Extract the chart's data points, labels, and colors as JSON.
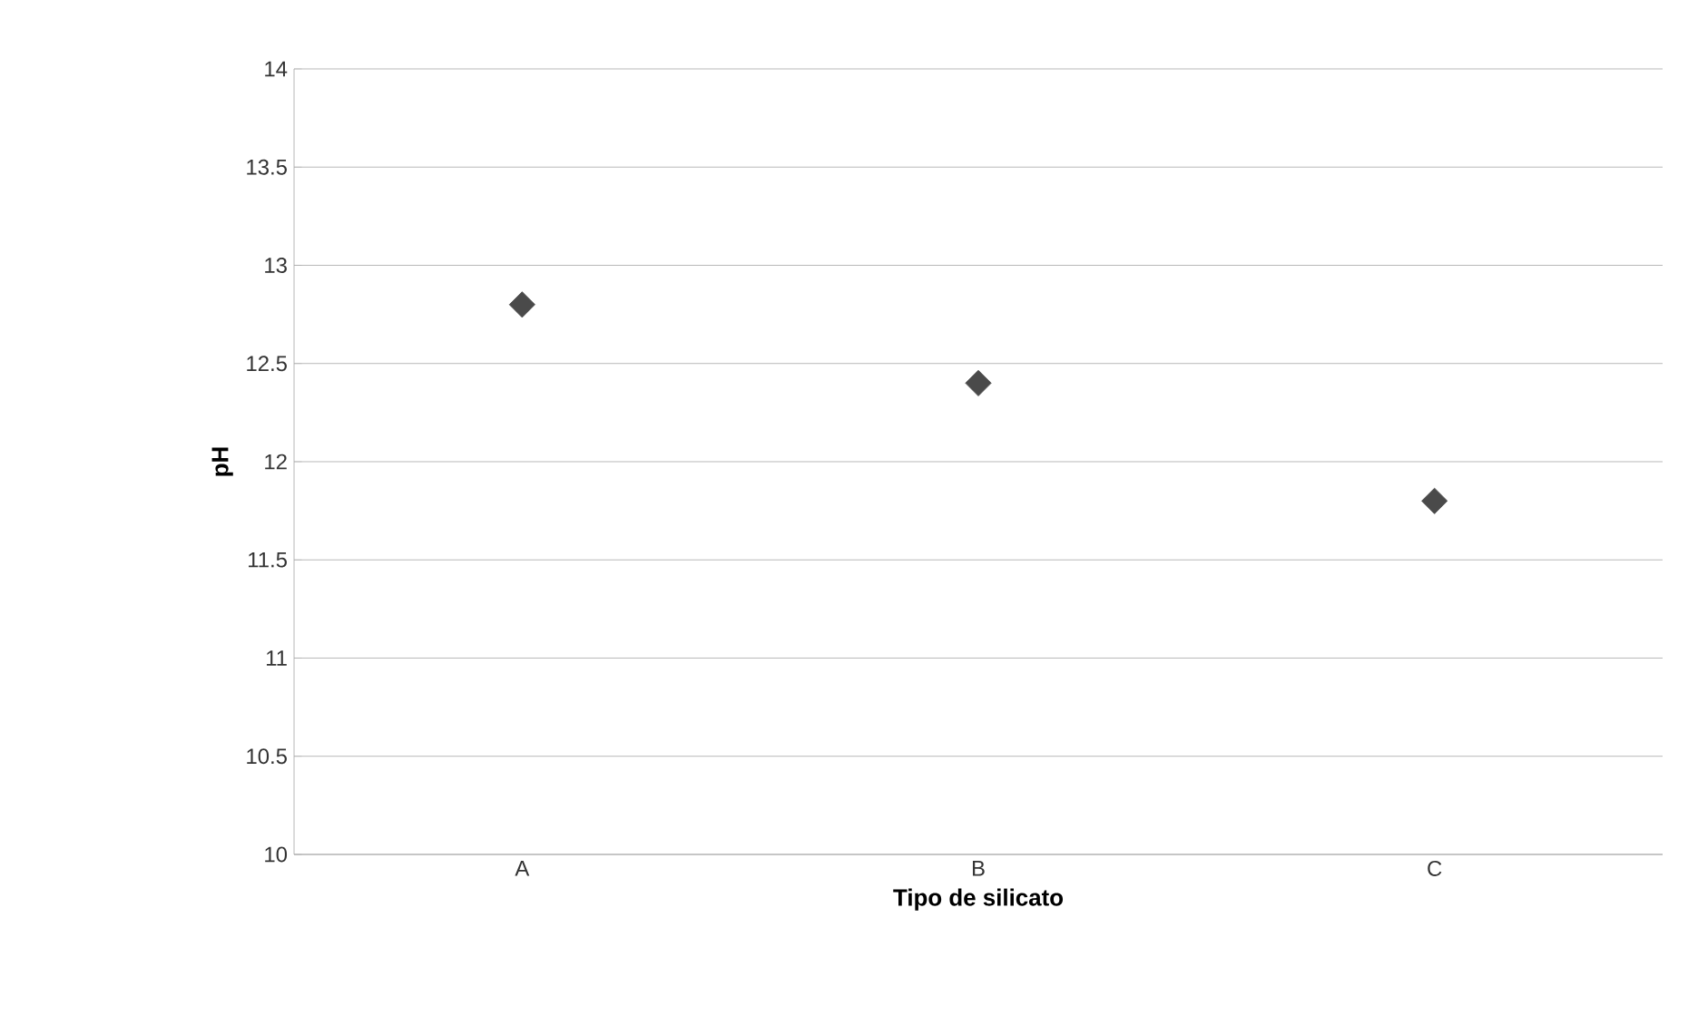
{
  "chart_data": {
    "type": "scatter",
    "xlabel": "Tipo de silicato",
    "ylabel": "pH",
    "categories": [
      "A",
      "B",
      "C"
    ],
    "values": [
      12.8,
      12.4,
      11.8
    ],
    "color": "#4a4a4a",
    "marker": "diamond",
    "ylim": [
      10,
      14
    ],
    "yticks": [
      10,
      10.5,
      11,
      11.5,
      12,
      12.5,
      13,
      13.5,
      14
    ],
    "grid": "y"
  }
}
